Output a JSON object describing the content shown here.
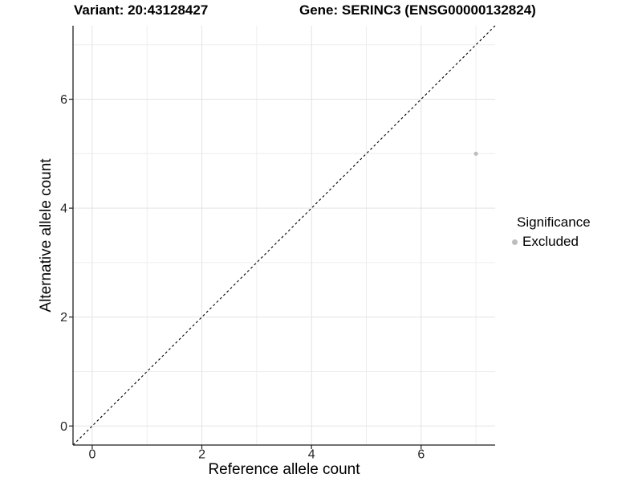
{
  "chart_data": {
    "type": "scatter",
    "titles": [
      "Variant: 20:43128427",
      "Gene: SERINC3 (ENSG00000132824)"
    ],
    "xlabel": "Reference allele count",
    "ylabel": "Alternative allele count",
    "x_ticks": [
      0,
      2,
      4,
      6
    ],
    "y_ticks": [
      0,
      2,
      4,
      6
    ],
    "x_minor_gridlines": [
      1,
      3,
      5,
      7
    ],
    "y_minor_gridlines": [
      1,
      3,
      5,
      7
    ],
    "xlim": [
      -0.35,
      7.35
    ],
    "ylim": [
      -0.35,
      7.35
    ],
    "grid": "on",
    "series": [
      {
        "name": "Excluded",
        "color": "#bdbdbd",
        "marker": "circle",
        "points": [
          {
            "x": 7,
            "y": 5
          }
        ]
      }
    ],
    "reference_line": {
      "kind": "identity",
      "slope": 1,
      "intercept": 0,
      "style": "dashed",
      "color": "#000000"
    },
    "legend": {
      "title": "Significance",
      "position": "right",
      "items": [
        {
          "label": "Excluded",
          "color": "#bdbdbd",
          "marker": "circle"
        }
      ]
    }
  },
  "colors": {
    "background": "#ffffff",
    "grid_major": "#e3e3e3",
    "grid_minor": "#eeeeee",
    "axis_line": "#1f1f1f",
    "tick_label": "#262626",
    "title_text": "#000000"
  }
}
